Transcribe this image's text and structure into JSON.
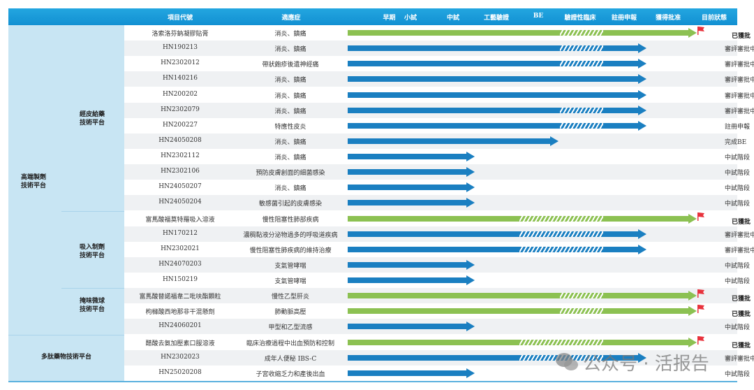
{
  "colors": {
    "blue": "#1a7fc1",
    "green": "#8cc152",
    "header": "#1a9ad6",
    "flag": "#e8323c"
  },
  "header": {
    "code": "項目代號",
    "indication": "適應症",
    "stages": [
      "早期",
      "小試",
      "中試",
      "工藝驗證",
      "BE",
      "驗證性臨床",
      "註冊申報",
      "獲得批准"
    ],
    "status": "目前狀態"
  },
  "groups": {
    "super": {
      "label": "高端製劑\n技術平台"
    },
    "dermal": {
      "label": "經皮給藥\n技術平台"
    },
    "inhale": {
      "label": "吸入制劑\n技術平台"
    },
    "taste": {
      "label": "掩味微球\n技術平台"
    },
    "peptide": {
      "label": "多肽藥物技術平台"
    }
  },
  "rows": [
    {
      "code": "洛索洛芬鈉凝膠貼膏",
      "indication": "消炎、鎮痛",
      "color": "green",
      "end_stage": "獲得批准",
      "hatch": [
        "驗證性臨床"
      ],
      "status": "已獲批",
      "approved": true
    },
    {
      "code": "HN190213",
      "indication": "消炎、鎮痛",
      "color": "blue",
      "end_stage": "註冊申報",
      "hatch": [
        "驗證性臨床"
      ],
      "status": "審評審批中"
    },
    {
      "code": "HN2302012",
      "indication": "帶狀皰疹後遺神經痛",
      "color": "blue",
      "end_stage": "註冊申報",
      "hatch": [
        "驗證性臨床"
      ],
      "status": "審評審批中"
    },
    {
      "code": "HN140216",
      "indication": "消炎、鎮痛",
      "color": "blue",
      "end_stage": "註冊申報",
      "hatch": [],
      "status": "審評審批中"
    },
    {
      "code": "HN200202",
      "indication": "消炎、鎮痛",
      "color": "blue",
      "end_stage": "註冊申報",
      "hatch": [],
      "status": "審評審批中"
    },
    {
      "code": "HN2302079",
      "indication": "消炎、鎮痛",
      "color": "blue",
      "end_stage": "註冊申報",
      "hatch": [
        "驗證性臨床"
      ],
      "status": "審評審批中"
    },
    {
      "code": "HN200227",
      "indication": "特應性皮炎",
      "color": "blue",
      "end_stage": "註冊申報",
      "hatch": [
        "驗證性臨床"
      ],
      "status": "註冊申報"
    },
    {
      "code": "HN24050208",
      "indication": "消炎、鎮痛",
      "color": "blue",
      "end_stage": "BE",
      "hatch": [],
      "status": "完成BE"
    },
    {
      "code": "HN2302112",
      "indication": "消炎、鎮痛",
      "color": "blue",
      "end_stage": "中試",
      "hatch": [],
      "status": "中試階段"
    },
    {
      "code": "HN2302106",
      "indication": "預防皮膚創面的細菌感染",
      "color": "blue",
      "end_stage": "中試",
      "hatch": [],
      "status": "中試階段"
    },
    {
      "code": "HN24050207",
      "indication": "消炎、鎮痛",
      "color": "blue",
      "end_stage": "中試",
      "hatch": [],
      "status": "中試階段"
    },
    {
      "code": "HN24050204",
      "indication": "敏感菌引起的皮膚感染",
      "color": "blue",
      "end_stage": "中試",
      "hatch": [],
      "status": "中試階段"
    },
    {
      "code": "富馬酸福莫特羅吸入溶液",
      "indication": "慢性阻塞性肺部疾病",
      "color": "green",
      "end_stage": "獲得批准",
      "hatch": [
        "BE",
        "驗證性臨床"
      ],
      "status": "已獲批",
      "approved": true
    },
    {
      "code": "HN170212",
      "indication": "濃稠黏液分泌物過多的呼吸道疾病",
      "color": "blue",
      "end_stage": "註冊申報",
      "hatch": [
        "BE",
        "驗證性臨床"
      ],
      "status": "審評審批中"
    },
    {
      "code": "HN2302021",
      "indication": "慢性阻塞性肺疾病的維持治療",
      "color": "blue",
      "end_stage": "註冊申報",
      "hatch": [
        "BE",
        "驗證性臨床"
      ],
      "status": "審評審批中"
    },
    {
      "code": "HN24070203",
      "indication": "支氣管哮喘",
      "color": "blue",
      "end_stage": "中試",
      "hatch": [],
      "status": "中試階段"
    },
    {
      "code": "HN150219",
      "indication": "支氣管哮喘",
      "color": "blue",
      "end_stage": "中試",
      "hatch": [],
      "status": "中試階段"
    },
    {
      "code": "富馬酸替諾福韋二吡呋酯顆粒",
      "indication": "慢性乙型肝炎",
      "color": "green",
      "end_stage": "獲得批准",
      "hatch": [
        "驗證性臨床"
      ],
      "status": "已獲批",
      "approved": true
    },
    {
      "code": "枸櫞酸西地那非干混懸劑",
      "indication": "肺動脈高壓",
      "color": "green",
      "end_stage": "獲得批准",
      "hatch": [
        "驗證性臨床"
      ],
      "status": "已獲批",
      "approved": true
    },
    {
      "code": "HN24060201",
      "indication": "甲型和乙型流感",
      "color": "blue",
      "end_stage": "中試",
      "hatch": [],
      "status": "中試階段"
    },
    {
      "code": "醋酸去氨加壓素口服溶液",
      "indication": "臨床治療過程中出血預防和控制",
      "color": "green",
      "end_stage": "獲得批准",
      "hatch": [
        "BE",
        "驗證性臨床"
      ],
      "status": "已獲批",
      "approved": true
    },
    {
      "code": "HN2302023",
      "indication": "成年人便秘 IBS-C",
      "color": "blue",
      "end_stage": "註冊申報",
      "hatch": [
        "BE",
        "驗證性臨床"
      ],
      "status": "審評審批中"
    },
    {
      "code": "HN25020208",
      "indication": "子宮收縮乏力和產後出血",
      "color": "blue",
      "end_stage": "中試",
      "hatch": [],
      "status": "中試階段"
    }
  ],
  "watermark": "公众号 · 活报告"
}
